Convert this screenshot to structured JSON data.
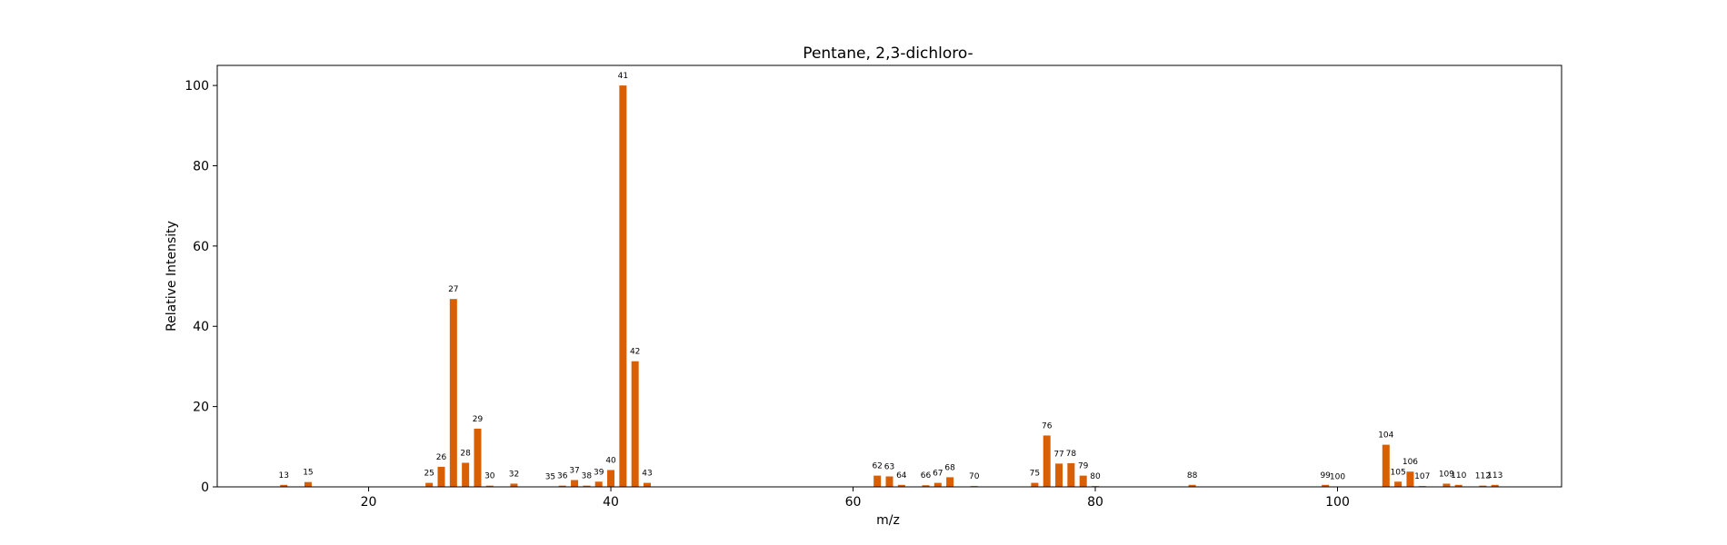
{
  "chart_data": {
    "type": "bar",
    "title": "Pentane, 2,3-dichloro-",
    "xlabel": "m/z",
    "ylabel": "Relative Intensity",
    "xlim": [
      7.5,
      118.5
    ],
    "ylim": [
      0,
      105
    ],
    "xticks": [
      20,
      40,
      60,
      80,
      100
    ],
    "yticks": [
      0,
      20,
      40,
      60,
      80,
      100
    ],
    "grid": false,
    "bar_color": "#d95f02",
    "series": [
      {
        "x": [
          13,
          15,
          25,
          26,
          27,
          28,
          29,
          30,
          32,
          35,
          36,
          37,
          38,
          39,
          40,
          41,
          42,
          43,
          62,
          63,
          64,
          66,
          67,
          68,
          70,
          75,
          76,
          77,
          78,
          79,
          80,
          88,
          99,
          100,
          104,
          105,
          106,
          107,
          109,
          110,
          112,
          113
        ],
        "values": [
          0.5,
          1.2,
          1.0,
          5.0,
          46.8,
          6.0,
          14.5,
          0.3,
          0.8,
          0.1,
          0.3,
          1.7,
          0.3,
          1.3,
          4.2,
          100,
          31.3,
          1.0,
          2.8,
          2.6,
          0.5,
          0.4,
          1.0,
          2.4,
          0.2,
          1.0,
          12.8,
          5.8,
          5.9,
          2.8,
          0.2,
          0.5,
          0.5,
          0.1,
          10.5,
          1.3,
          3.8,
          0.2,
          0.8,
          0.5,
          0.3,
          0.5
        ]
      }
    ]
  }
}
